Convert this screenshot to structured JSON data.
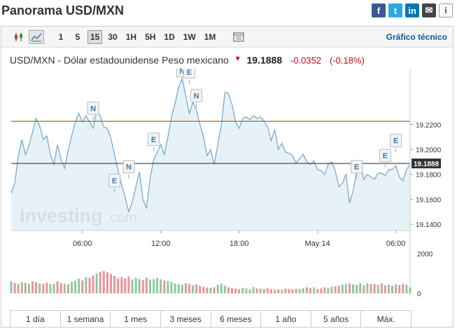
{
  "page": {
    "title": "Panorama USD/MXN"
  },
  "social": [
    {
      "name": "facebook-icon",
      "glyph": "f",
      "cls": "fb"
    },
    {
      "name": "twitter-icon",
      "glyph": "t",
      "cls": "tw"
    },
    {
      "name": "linkedin-icon",
      "glyph": "in",
      "cls": "li"
    },
    {
      "name": "mail-icon",
      "glyph": "✉",
      "cls": "ml"
    },
    {
      "name": "info-icon",
      "glyph": "i",
      "cls": "inf"
    }
  ],
  "toolbar": {
    "intervals": [
      "1",
      "5",
      "15",
      "30",
      "1H",
      "5H",
      "1D",
      "1W",
      "1M"
    ],
    "active_interval": "15",
    "tech_link": "Gráfico técnico"
  },
  "quote": {
    "name": "USD/MXN - Dólar estadounidense Peso mexicano",
    "price": "19.1888",
    "change": "-0.0352",
    "change_pct": "(-0.18%)"
  },
  "chart_data": {
    "type": "area",
    "watermark": "Investing",
    "watermark_suffix": ".com",
    "ylim": [
      19.135,
      19.265
    ],
    "y_ticks": [
      "19.2200",
      "19.2000",
      "19.1800",
      "19.1600",
      "19.1400"
    ],
    "y_tick_values": [
      19.22,
      19.2,
      19.18,
      19.16,
      19.14
    ],
    "price_label": "19.1888",
    "current_price": 19.1888,
    "reference_line": 19.2227,
    "x_ticks": [
      "06:00",
      "12:00",
      "18:00",
      "May 14",
      "06:00"
    ],
    "x_tick_index": [
      20,
      42,
      64,
      86,
      108
    ],
    "values": [
      19.165,
      19.173,
      19.195,
      19.208,
      19.196,
      19.203,
      19.214,
      19.225,
      19.219,
      19.208,
      19.211,
      19.196,
      19.188,
      19.204,
      19.192,
      19.185,
      19.199,
      19.211,
      19.222,
      19.229,
      19.222,
      19.227,
      19.222,
      19.217,
      19.231,
      19.227,
      19.218,
      19.217,
      19.209,
      19.196,
      19.183,
      19.172,
      19.162,
      19.15,
      19.158,
      19.17,
      19.182,
      19.16,
      19.153,
      19.177,
      19.192,
      19.198,
      19.204,
      19.196,
      19.21,
      19.226,
      19.237,
      19.25,
      19.257,
      19.243,
      19.229,
      19.238,
      19.232,
      19.22,
      19.21,
      19.195,
      19.2,
      19.188,
      19.204,
      19.22,
      19.246,
      19.245,
      19.236,
      19.222,
      19.217,
      19.225,
      19.226,
      19.224,
      19.227,
      19.225,
      19.226,
      19.223,
      19.218,
      19.207,
      19.216,
      19.2,
      19.205,
      19.198,
      19.197,
      19.195,
      19.189,
      19.193,
      19.196,
      19.19,
      19.188,
      19.191,
      19.184,
      19.183,
      19.18,
      19.188,
      19.19,
      19.183,
      19.17,
      19.173,
      19.18,
      19.157,
      19.167,
      19.183,
      19.19,
      19.176,
      19.18,
      19.178,
      19.176,
      19.181,
      19.181,
      19.179,
      19.184,
      19.184,
      19.187,
      19.178,
      19.175,
      19.184,
      19.188
    ],
    "volume_ylim": [
      0,
      2000
    ],
    "volume_ticks": [
      "2000",
      "0"
    ],
    "volume": [
      600,
      520,
      470,
      560,
      530,
      480,
      610,
      570,
      500,
      470,
      540,
      470,
      480,
      600,
      520,
      480,
      460,
      580,
      630,
      740,
      650,
      820,
      780,
      900,
      1000,
      1080,
      1120,
      1050,
      970,
      880,
      760,
      820,
      740,
      850,
      700,
      780,
      720,
      660,
      800,
      690,
      720,
      780,
      710,
      650,
      620,
      560,
      500,
      470,
      430,
      510,
      470,
      400,
      450,
      380,
      330,
      300,
      280,
      310,
      430,
      480,
      380,
      300,
      260,
      240,
      210,
      280,
      250,
      200,
      310,
      260,
      240,
      220,
      250,
      210,
      190,
      200,
      180,
      240,
      220,
      200,
      230,
      220,
      260,
      300,
      270,
      300,
      220,
      250,
      300,
      280,
      330,
      350,
      380,
      440,
      470,
      500,
      450,
      420,
      520,
      400,
      510,
      460,
      470,
      430,
      500,
      410,
      430,
      380,
      460,
      420,
      470,
      440,
      300
    ],
    "volume_colors": [
      "g",
      "r",
      "r",
      "g",
      "r",
      "g",
      "r",
      "r",
      "g",
      "r",
      "r",
      "g",
      "g",
      "r",
      "r",
      "g",
      "r",
      "g",
      "g",
      "g",
      "r",
      "g",
      "r",
      "r",
      "g",
      "r",
      "r",
      "r",
      "r",
      "r",
      "r",
      "r",
      "r",
      "r",
      "g",
      "g",
      "g",
      "r",
      "r",
      "g",
      "g",
      "g",
      "g",
      "r",
      "g",
      "g",
      "g",
      "g",
      "g",
      "r",
      "r",
      "g",
      "r",
      "r",
      "r",
      "r",
      "g",
      "r",
      "g",
      "g",
      "g",
      "r",
      "r",
      "r",
      "r",
      "g",
      "g",
      "r",
      "g",
      "r",
      "g",
      "r",
      "r",
      "r",
      "g",
      "r",
      "g",
      "r",
      "r",
      "r",
      "r",
      "g",
      "g",
      "r",
      "r",
      "g",
      "r",
      "r",
      "r",
      "g",
      "g",
      "r",
      "r",
      "g",
      "g",
      "r",
      "g",
      "g",
      "g",
      "r",
      "g",
      "r",
      "r",
      "g",
      "r",
      "r",
      "g",
      "r",
      "g",
      "r",
      "r",
      "g",
      "g"
    ],
    "events": [
      {
        "label": "N",
        "i": 23,
        "v": 19.227
      },
      {
        "label": "N",
        "i": 48,
        "v": 19.257
      },
      {
        "label": "E",
        "i": 50,
        "v": 19.256
      },
      {
        "label": "N",
        "i": 52,
        "v": 19.237
      },
      {
        "label": "E",
        "i": 40,
        "v": 19.202
      },
      {
        "label": "N",
        "i": 33,
        "v": 19.18
      },
      {
        "label": "E",
        "i": 29,
        "v": 19.169
      },
      {
        "label": "E",
        "i": 97,
        "v": 19.18
      },
      {
        "label": "E",
        "i": 105,
        "v": 19.189
      },
      {
        "label": "E",
        "i": 108,
        "v": 19.201
      }
    ]
  },
  "ranges": [
    "1 día",
    "1 semana",
    "1 mes",
    "3 meses",
    "6 meses",
    "1 año",
    "5 años",
    "Máx."
  ],
  "colors": {
    "line": "#6ea6d2",
    "area": "#e3eef7",
    "reference": "#c0392b",
    "vol_up": "#8cc9a0",
    "vol_down": "#e8949a",
    "price_tag": "#333333"
  }
}
